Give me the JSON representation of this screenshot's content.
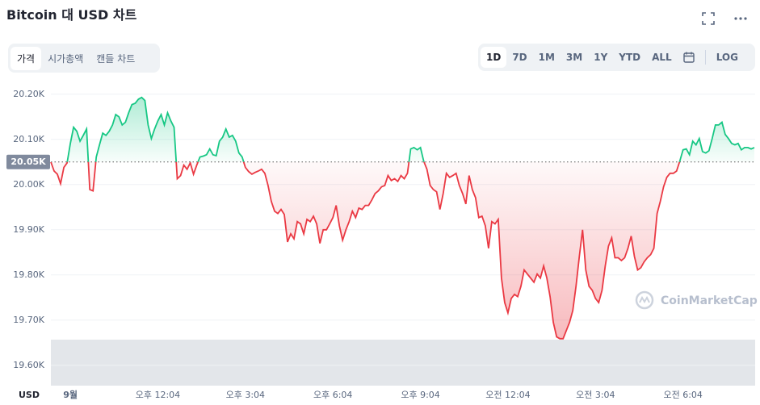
{
  "header": {
    "title": "Bitcoin 대 USD 차트"
  },
  "tabs": [
    "가격",
    "시가총액",
    "캔들 차트"
  ],
  "ranges": [
    "1D",
    "7D",
    "1M",
    "3M",
    "1Y",
    "YTD",
    "ALL"
  ],
  "log_button": "LOG",
  "chart_data": {
    "type": "line",
    "up_color": "#16c784",
    "down_color": "#ea3943",
    "grid": true,
    "currency_label": "USD",
    "watermark": "CoinMarketCap",
    "reference": {
      "value": 20050,
      "label": "20.05K"
    },
    "ylim": [
      19555,
      20230
    ],
    "yticks": [
      {
        "value": 19600,
        "label": "19.60K"
      },
      {
        "value": 19700,
        "label": "19.70K"
      },
      {
        "value": 19800,
        "label": "19.80K"
      },
      {
        "value": 19900,
        "label": "19.90K"
      },
      {
        "value": 20000,
        "label": "20.00K"
      },
      {
        "value": 20100,
        "label": "20.10K"
      },
      {
        "value": 20200,
        "label": "20.20K"
      }
    ],
    "xticks": [
      {
        "value": 6,
        "label": "9월"
      },
      {
        "value": 33,
        "label": "오후 12:04"
      },
      {
        "value": 60,
        "label": "오후 3:04"
      },
      {
        "value": 87,
        "label": "오후 6:04"
      },
      {
        "value": 114,
        "label": "오후 9:04"
      },
      {
        "value": 141,
        "label": "오전 12:04"
      },
      {
        "value": 168,
        "label": "오전 3:04"
      },
      {
        "value": 195,
        "label": "오전 6:04"
      }
    ],
    "values": [
      20050,
      20030,
      20023,
      20002,
      20038,
      20048,
      20091,
      20127,
      20118,
      20096,
      20109,
      20123,
      19989,
      19986,
      20061,
      20088,
      20114,
      20109,
      20118,
      20132,
      20155,
      20150,
      20132,
      20138,
      20159,
      20177,
      20180,
      20189,
      20193,
      20186,
      20132,
      20102,
      20123,
      20141,
      20155,
      20132,
      20159,
      20141,
      20127,
      20013,
      20020,
      20043,
      20034,
      20048,
      20023,
      20043,
      20061,
      20063,
      20066,
      20079,
      20066,
      20064,
      20096,
      20105,
      20123,
      20105,
      20109,
      20096,
      20070,
      20061,
      20038,
      20029,
      20023,
      20027,
      20030,
      20034,
      20025,
      19998,
      19963,
      19941,
      19936,
      19945,
      19934,
      19873,
      19891,
      19880,
      19918,
      19913,
      19891,
      19923,
      19918,
      19930,
      19913,
      19870,
      19900,
      19900,
      19913,
      19927,
      19954,
      19909,
      19877,
      19900,
      19918,
      19941,
      19927,
      19948,
      19945,
      19954,
      19954,
      19966,
      19980,
      19986,
      19995,
      19998,
      20020,
      20009,
      20013,
      20007,
      20020,
      20013,
      20025,
      20079,
      20082,
      20077,
      20082,
      20052,
      20034,
      19998,
      19989,
      19984,
      19945,
      19980,
      20025,
      20016,
      20020,
      20025,
      19998,
      19980,
      19957,
      20020,
      19989,
      19971,
      19927,
      19930,
      19909,
      19859,
      19918,
      19913,
      19923,
      19793,
      19739,
      19716,
      19748,
      19757,
      19752,
      19775,
      19811,
      19802,
      19793,
      19784,
      19802,
      19793,
      19820,
      19793,
      19752,
      19695,
      19663,
      19659,
      19659,
      19677,
      19695,
      19721,
      19775,
      19841,
      19900,
      19811,
      19775,
      19766,
      19748,
      19739,
      19766,
      19820,
      19864,
      19882,
      19838,
      19838,
      19832,
      19838,
      19859,
      19886,
      19841,
      19811,
      19816,
      19829,
      19838,
      19845,
      19859,
      19936,
      19963,
      19995,
      20016,
      20025,
      20025,
      20030,
      20052,
      20077,
      20079,
      20066,
      20096,
      20088,
      20102,
      20073,
      20070,
      20075,
      20102,
      20132,
      20132,
      20138,
      20111,
      20102,
      20091,
      20088,
      20091,
      20077,
      20082,
      20082,
      20079,
      20082
    ]
  }
}
